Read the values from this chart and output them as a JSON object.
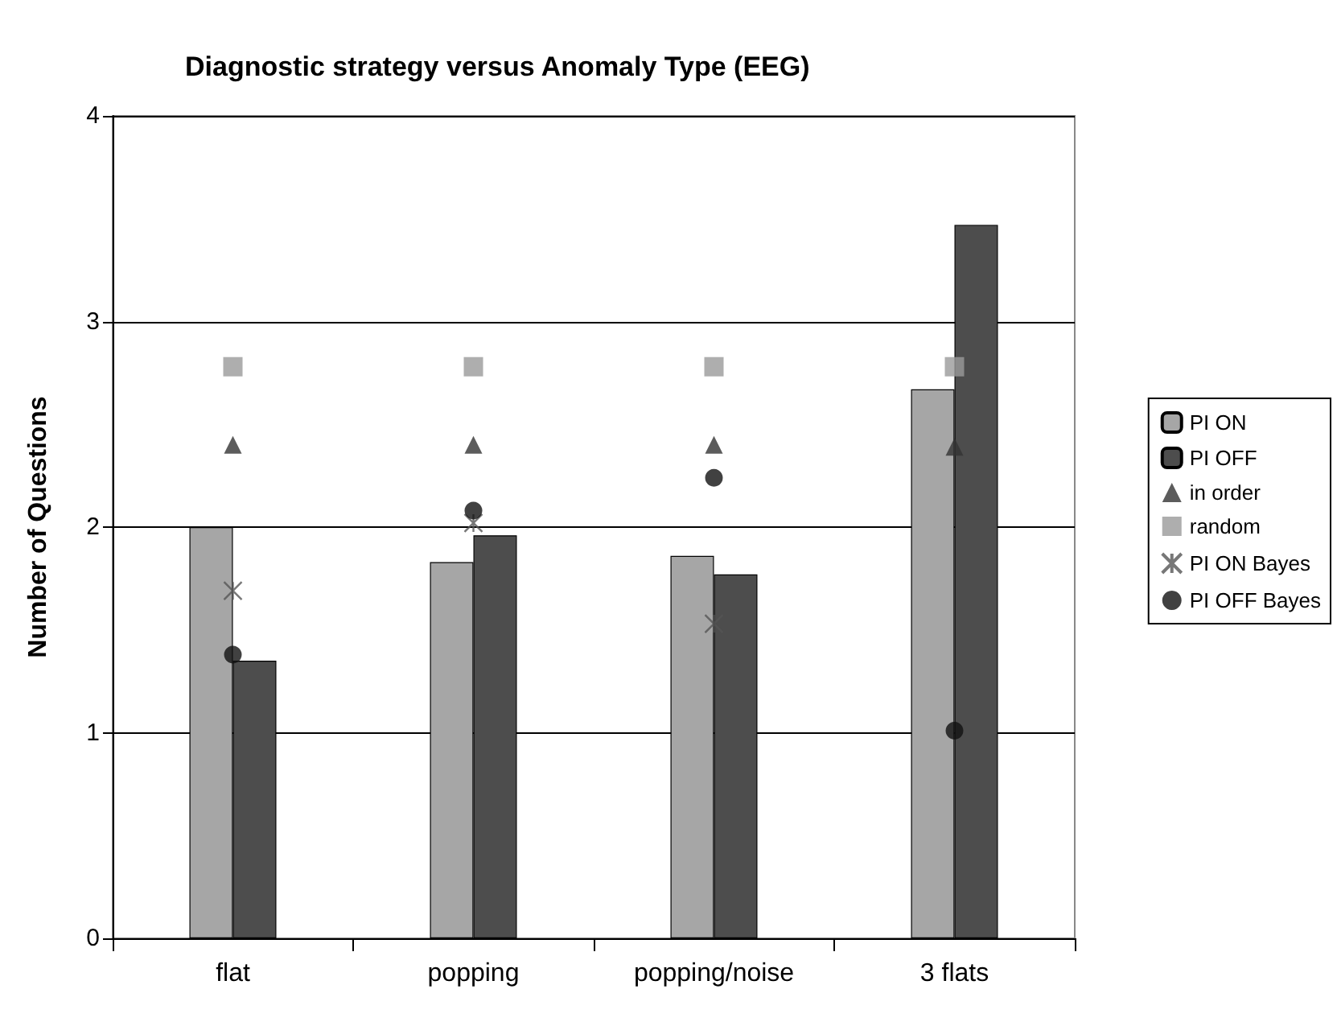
{
  "chart_data": {
    "type": "bar",
    "title": "Diagnostic strategy versus Anomaly Type (EEG)",
    "ylabel": "Number of Questions",
    "categories": [
      "flat",
      "popping",
      "popping/noise",
      "3 flats"
    ],
    "series": [
      {
        "name": "PI ON",
        "color": "#a6a6a6",
        "values": [
          2.0,
          1.83,
          1.86,
          2.67
        ]
      },
      {
        "name": "PI OFF",
        "color": "#4d4d4d",
        "values": [
          1.35,
          1.96,
          1.77,
          3.47
        ]
      },
      {
        "name": "in order",
        "type": "scatter",
        "marker": "triangle",
        "color": "#333333",
        "x": [
          "flat",
          "popping",
          "popping/noise",
          "3 flats"
        ],
        "values": [
          2.4,
          2.4,
          2.4,
          2.39
        ]
      },
      {
        "name": "random",
        "type": "scatter",
        "marker": "square",
        "color": "#9a9a9a",
        "x": [
          "flat",
          "popping",
          "popping/noise",
          "3 flats"
        ],
        "values": [
          2.78,
          2.78,
          2.78,
          2.78
        ]
      },
      {
        "name": "PI ON Bayes",
        "type": "scatter",
        "marker": "cross",
        "color": "#555555",
        "x": [
          "flat",
          "popping",
          "popping/noise",
          "3 flats"
        ],
        "values": [
          1.69,
          2.02,
          1.53,
          null
        ]
      },
      {
        "name": "PI OFF Bayes",
        "type": "scatter",
        "marker": "circle",
        "color": "#111111",
        "x": [
          "flat",
          "popping",
          "popping/noise",
          "3 flats"
        ],
        "values": [
          1.38,
          2.08,
          2.24,
          1.01
        ]
      }
    ],
    "ylim": [
      0,
      4
    ],
    "yticks": [
      0,
      1,
      2,
      3,
      4
    ],
    "grid": "y",
    "legend": "right"
  }
}
